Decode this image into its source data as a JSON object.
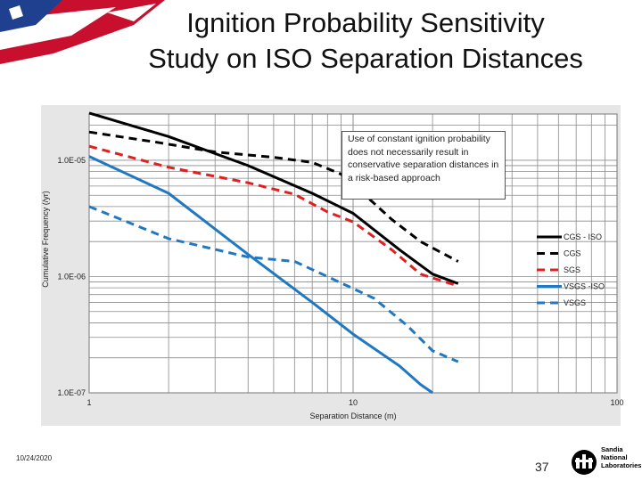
{
  "slide": {
    "title_line1": "Ignition Probability Sensitivity",
    "title_line2": "Study on ISO Separation Distances",
    "date": "10/24/2020",
    "page_number": "37",
    "logo_lines": [
      "Sandia",
      "National",
      "Laboratories"
    ]
  },
  "note": {
    "text": "Use of constant ignition probability does not necessarily result in conservative separation distances in a risk-based approach"
  },
  "colors": {
    "black": "#000000",
    "red": "#e02020",
    "blue": "#1f78c1",
    "grid": "#8a8a8a",
    "plot_bg": "#ffffff",
    "frame_bg": "#e6e6e6"
  },
  "chart_data": {
    "type": "line",
    "title": "",
    "xlabel": "Separation Distance (m)",
    "ylabel": "Cumulative Frequency (/yr)",
    "xscale": "log",
    "yscale": "log",
    "xlim": [
      1,
      100
    ],
    "ylim": [
      1e-07,
      2.5e-05
    ],
    "x_ticks": [
      {
        "value": 1,
        "label": "1"
      },
      {
        "value": 10,
        "label": "10"
      },
      {
        "value": 100,
        "label": "100"
      }
    ],
    "y_ticks": [
      {
        "value": 1e-07,
        "label": "1.0E-07"
      },
      {
        "value": 1e-06,
        "label": "1.0E-06"
      },
      {
        "value": 1e-05,
        "label": "1.0E-05"
      }
    ],
    "legend_position": "right",
    "series": [
      {
        "name": "CGS - ISO",
        "color": "#000000",
        "dash": "solid",
        "points": [
          [
            1,
            2.55e-05
          ],
          [
            2,
            1.6e-05
          ],
          [
            4,
            9e-06
          ],
          [
            7,
            5.2e-06
          ],
          [
            10,
            3.5e-06
          ],
          [
            15,
            1.7e-06
          ],
          [
            20,
            1.05e-06
          ],
          [
            25,
            8.7e-07
          ]
        ]
      },
      {
        "name": "CGS",
        "color": "#000000",
        "dash": "dashed",
        "points": [
          [
            1,
            1.75e-05
          ],
          [
            1.8,
            1.43e-05
          ],
          [
            3,
            1.18e-05
          ],
          [
            5,
            1.06e-05
          ],
          [
            7,
            9.6e-06
          ],
          [
            9,
            7.6e-06
          ],
          [
            11,
            5.1e-06
          ],
          [
            14,
            3.1e-06
          ],
          [
            18,
            2e-06
          ],
          [
            25,
            1.35e-06
          ]
        ]
      },
      {
        "name": "SGS",
        "color": "#e02020",
        "dash": "dashed",
        "points": [
          [
            1,
            1.32e-05
          ],
          [
            2,
            8.7e-06
          ],
          [
            4,
            6.4e-06
          ],
          [
            6,
            5.1e-06
          ],
          [
            8,
            3.6e-06
          ],
          [
            10,
            2.95e-06
          ],
          [
            14,
            1.7e-06
          ],
          [
            18,
            1.05e-06
          ],
          [
            25,
            8.3e-07
          ]
        ]
      },
      {
        "name": "VSGS -ISO",
        "color": "#1f78c1",
        "dash": "solid",
        "points": [
          [
            1,
            1.08e-05
          ],
          [
            2,
            5.2e-06
          ],
          [
            4,
            1.55e-06
          ],
          [
            7,
            6e-07
          ],
          [
            10,
            3.2e-07
          ],
          [
            15,
            1.7e-07
          ],
          [
            18,
            1.18e-07
          ],
          [
            20,
            1e-07
          ]
        ]
      },
      {
        "name": "VSGS",
        "color": "#1f78c1",
        "dash": "dashed",
        "points": [
          [
            1,
            4e-06
          ],
          [
            2,
            2.12e-06
          ],
          [
            4,
            1.47e-06
          ],
          [
            6,
            1.35e-06
          ],
          [
            8,
            1e-06
          ],
          [
            12,
            6.5e-07
          ],
          [
            16,
            3.8e-07
          ],
          [
            20,
            2.3e-07
          ],
          [
            25,
            1.85e-07
          ]
        ]
      }
    ]
  }
}
